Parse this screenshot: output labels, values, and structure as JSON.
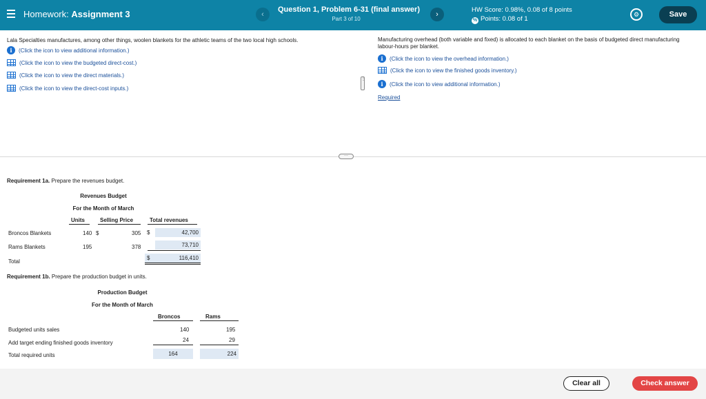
{
  "header": {
    "menu_icon": "hamburger-icon",
    "homework_prefix": "Homework:",
    "homework_name": "Assignment 3",
    "question_title": "Question 1, Problem 6-31 (final answer)",
    "question_part": "Part 3 of 10",
    "hw_score": "HW Score: 0.98%, 0.08 of 8 points",
    "points": "Points: 0.08 of 1",
    "save_label": "Save",
    "accent": "#0e83a6"
  },
  "left": {
    "intro": "Lala Specialties manufactures, among other things, woolen blankets for the athletic teams of the two local high schools.",
    "links": [
      "(Click the icon to view additional information.)",
      "(Click the icon to view the budgeted direct-cost.)",
      "(Click the icon to view the direct materials.)",
      "(Click the icon to view the direct-cost inputs.)"
    ]
  },
  "right": {
    "text": "Manufacturing overhead (both variable and fixed) is allocated to each blanket on the basis of budgeted direct manufacturing labour-hours per blanket.",
    "links": [
      "(Click the icon to view the overhead information.)",
      "(Click the icon to view the finished goods inventory.)",
      "(Click the icon to view additional information.)"
    ],
    "required": "Required"
  },
  "req1a": {
    "label_bold": "Requirement 1a.",
    "label_rest": "Prepare the revenues budget.",
    "title": "Revenues Budget",
    "subtitle": "For the Month of March",
    "col_units": "Units",
    "col_price": "Selling Price",
    "col_total": "Total revenues",
    "rows": [
      {
        "name": "Broncos Blankets",
        "units": "140",
        "dollar": "$",
        "price": "305",
        "dollar2": "$",
        "total": "42,700"
      },
      {
        "name": "Rams Blankets",
        "units": "195",
        "price": "378",
        "total": "73,710"
      }
    ],
    "total_label": "Total",
    "total_dollar": "$",
    "total_value": "116,410"
  },
  "req1b": {
    "label_bold": "Requirement 1b.",
    "label_rest": "Prepare the production budget in units.",
    "title": "Production Budget",
    "subtitle": "For the Month of March",
    "col_broncos": "Broncos",
    "col_rams": "Rams",
    "rows": [
      {
        "name": "Budgeted units sales",
        "broncos": "140",
        "rams": "195"
      },
      {
        "name": "Add target ending finished goods inventory",
        "broncos": "24",
        "rams": "29"
      },
      {
        "name": "Total required units",
        "broncos": "164",
        "rams": "224"
      }
    ]
  },
  "footer": {
    "clear_label": "Clear all",
    "check_label": "Check answer",
    "check_color": "#e34545"
  }
}
